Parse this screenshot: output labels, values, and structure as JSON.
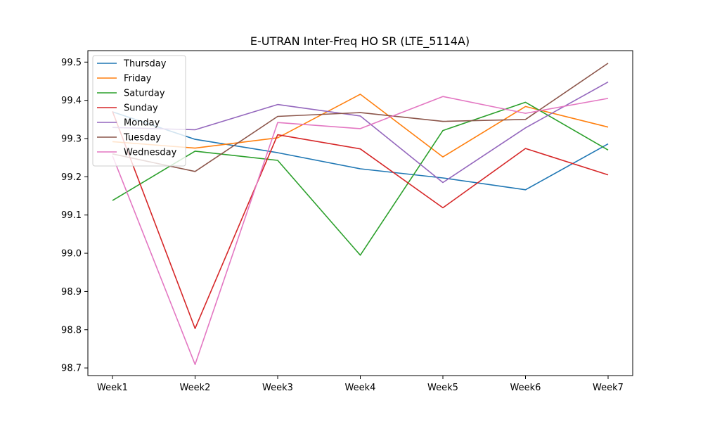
{
  "chart_data": {
    "type": "line",
    "title": "E-UTRAN Inter-Freq HO SR (LTE_5114A)",
    "xlabel": "",
    "ylabel": "",
    "categories": [
      "Week1",
      "Week2",
      "Week3",
      "Week4",
      "Week5",
      "Week6",
      "Week7"
    ],
    "ylim": [
      98.68,
      99.53
    ],
    "yticks": [
      98.7,
      98.8,
      98.9,
      99.0,
      99.1,
      99.2,
      99.3,
      99.4,
      99.5
    ],
    "grid": false,
    "legend_position": "upper-left",
    "series": [
      {
        "name": "Thursday",
        "color": "#1f77b4",
        "values": [
          99.37,
          99.298,
          99.263,
          99.221,
          99.197,
          99.166,
          99.286
        ]
      },
      {
        "name": "Friday",
        "color": "#ff7f0e",
        "values": [
          99.292,
          99.275,
          99.302,
          99.416,
          99.252,
          99.384,
          99.33
        ]
      },
      {
        "name": "Saturday",
        "color": "#2ca02c",
        "values": [
          99.138,
          99.267,
          99.243,
          98.995,
          99.321,
          99.395,
          99.27
        ]
      },
      {
        "name": "Sunday",
        "color": "#d62728",
        "values": [
          99.371,
          98.803,
          99.31,
          99.273,
          99.119,
          99.274,
          99.205
        ]
      },
      {
        "name": "Monday",
        "color": "#9467bd",
        "values": [
          99.329,
          99.323,
          99.389,
          99.359,
          99.185,
          99.328,
          99.448
        ]
      },
      {
        "name": "Tuesday",
        "color": "#8c564b",
        "values": [
          99.26,
          99.214,
          99.358,
          99.368,
          99.345,
          99.35,
          99.497
        ]
      },
      {
        "name": "Wednesday",
        "color": "#e377c2",
        "values": [
          99.255,
          98.709,
          99.342,
          99.326,
          99.41,
          99.366,
          99.405
        ]
      }
    ]
  }
}
